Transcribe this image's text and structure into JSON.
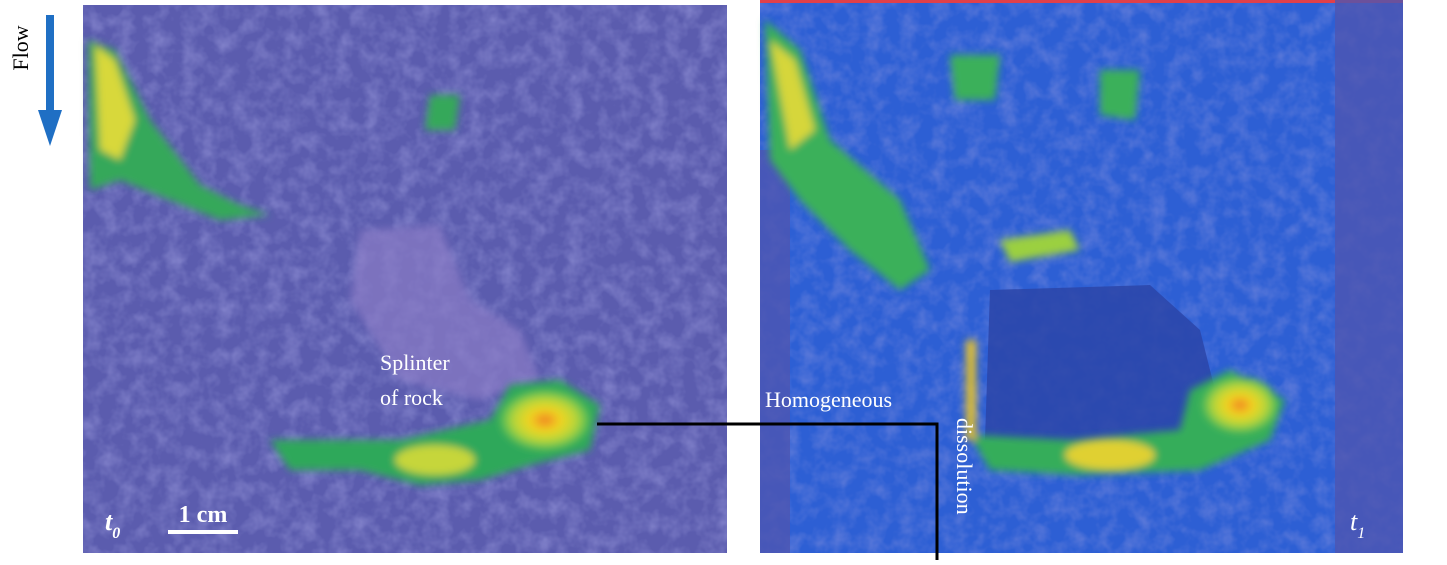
{
  "flow_label": "Flow",
  "left_panel": {
    "annotation_lines": [
      "Splinter",
      "of rock"
    ],
    "time_label": {
      "symbol": "t",
      "subscript": "0"
    },
    "scale_bar": "1 cm"
  },
  "right_panel": {
    "annotation_horizontal": "Homogeneous",
    "annotation_vertical": "dissolution",
    "time_label": {
      "symbol": "t",
      "subscript": "1"
    }
  }
}
